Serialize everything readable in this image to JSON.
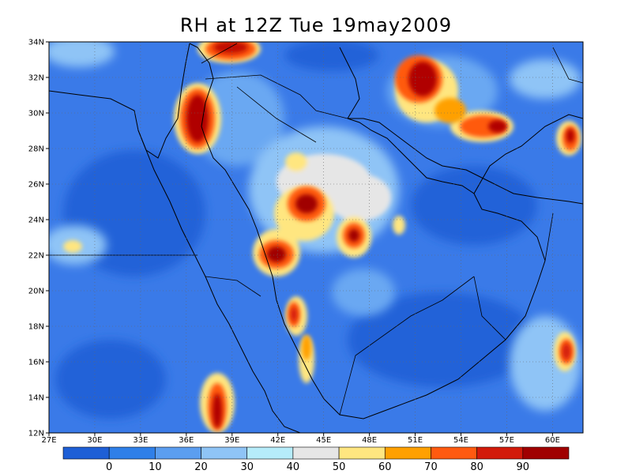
{
  "title": "RH at 12Z Tue 19may2009",
  "map": {
    "lon_range": [
      27,
      62
    ],
    "lat_range": [
      12,
      34
    ],
    "x_ticks": [
      "27E",
      "30E",
      "33E",
      "36E",
      "39E",
      "42E",
      "45E",
      "48E",
      "51E",
      "54E",
      "57E",
      "60E"
    ],
    "y_ticks": [
      "12N",
      "14N",
      "16N",
      "18N",
      "20N",
      "22N",
      "24N",
      "26N",
      "28N",
      "30N",
      "32N",
      "34N"
    ],
    "grid": "dotted"
  },
  "colorbar": {
    "labels": [
      "0",
      "10",
      "20",
      "30",
      "40",
      "50",
      "60",
      "70",
      "80",
      "90"
    ],
    "colors": [
      "#1e5fd6",
      "#2f7fe8",
      "#5b9ef0",
      "#8fc4f6",
      "#b6ecfa",
      "#e6e6e6",
      "#ffe680",
      "#ffa000",
      "#ff5a10",
      "#d21a0a",
      "#a00000"
    ]
  },
  "colors": {
    "base": "#3a7ae8",
    "grid": "#666666",
    "coast": "#000000"
  }
}
